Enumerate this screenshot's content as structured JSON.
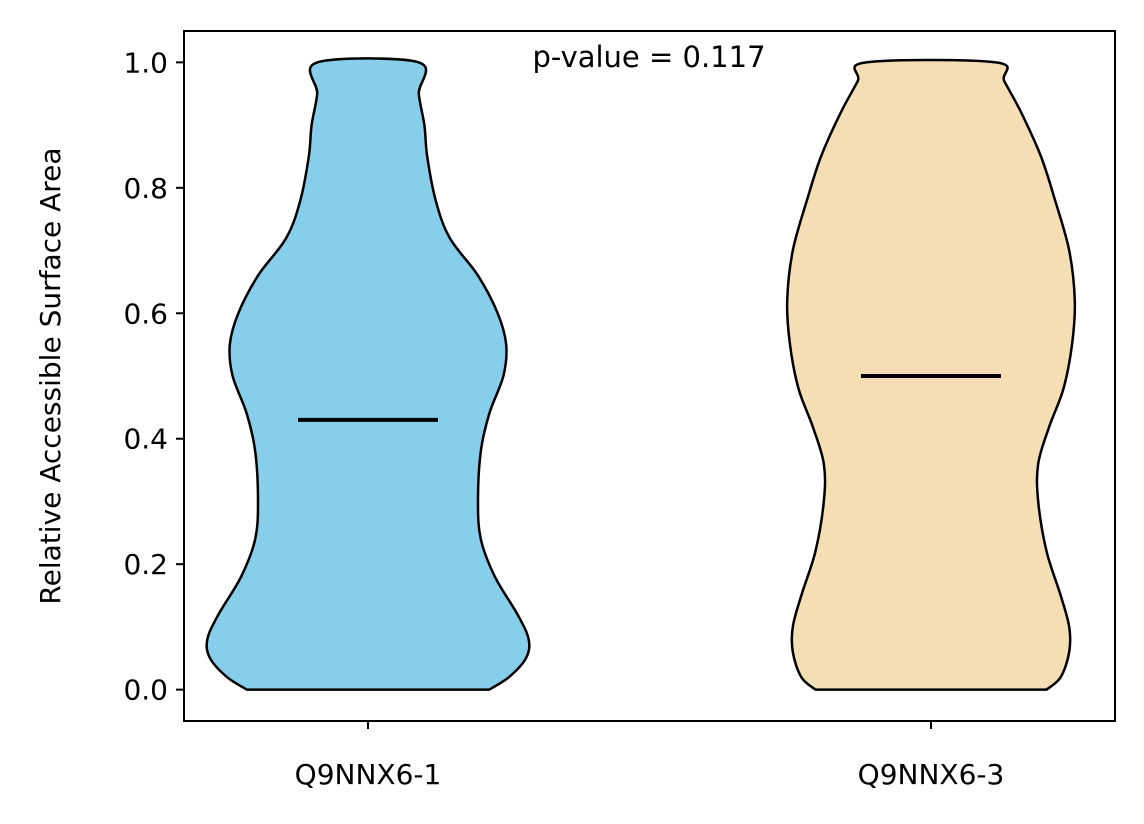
{
  "chart_data": {
    "type": "violin",
    "title": "",
    "xlabel": "",
    "ylabel": "Relative Accessible Surface Area",
    "annotation": "p-value = 0.117",
    "categories": [
      "Q9NNX6-1",
      "Q9NNX6-3"
    ],
    "ylim": [
      -0.05,
      1.05
    ],
    "yticks": [
      0.0,
      0.2,
      0.4,
      0.6,
      0.8,
      1.0
    ],
    "ytick_labels": [
      "0.0",
      "0.2",
      "0.4",
      "0.6",
      "0.8",
      "1.0"
    ],
    "grid": false,
    "series": [
      {
        "category": "Q9NNX6-1",
        "color": "#87CEEB",
        "min": 0.0,
        "max": 1.0,
        "median": 0.43,
        "profile_half_width": [
          [
            0.0,
            0.43
          ],
          [
            0.02,
            0.5
          ],
          [
            0.05,
            0.56
          ],
          [
            0.08,
            0.57
          ],
          [
            0.12,
            0.53
          ],
          [
            0.18,
            0.45
          ],
          [
            0.24,
            0.4
          ],
          [
            0.3,
            0.39
          ],
          [
            0.38,
            0.4
          ],
          [
            0.44,
            0.43
          ],
          [
            0.5,
            0.48
          ],
          [
            0.55,
            0.49
          ],
          [
            0.6,
            0.46
          ],
          [
            0.66,
            0.39
          ],
          [
            0.72,
            0.29
          ],
          [
            0.78,
            0.24
          ],
          [
            0.85,
            0.21
          ],
          [
            0.9,
            0.2
          ],
          [
            0.95,
            0.18
          ],
          [
            1.0,
            0.18
          ]
        ]
      },
      {
        "category": "Q9NNX6-3",
        "color": "#F5DEB3",
        "min": 0.0,
        "max": 1.0,
        "median": 0.5,
        "profile_half_width": [
          [
            0.0,
            0.41
          ],
          [
            0.02,
            0.46
          ],
          [
            0.06,
            0.49
          ],
          [
            0.1,
            0.49
          ],
          [
            0.15,
            0.46
          ],
          [
            0.22,
            0.41
          ],
          [
            0.3,
            0.38
          ],
          [
            0.36,
            0.38
          ],
          [
            0.42,
            0.42
          ],
          [
            0.48,
            0.47
          ],
          [
            0.55,
            0.5
          ],
          [
            0.62,
            0.51
          ],
          [
            0.7,
            0.49
          ],
          [
            0.78,
            0.44
          ],
          [
            0.85,
            0.39
          ],
          [
            0.92,
            0.32
          ],
          [
            0.97,
            0.26
          ],
          [
            1.0,
            0.23
          ]
        ]
      }
    ]
  }
}
